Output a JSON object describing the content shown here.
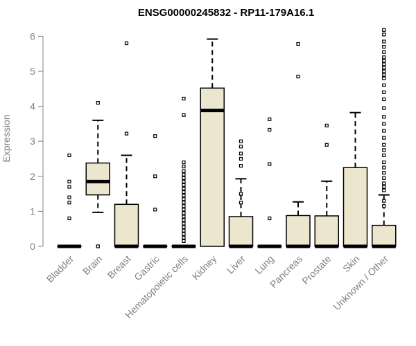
{
  "chart_data": {
    "type": "box",
    "title": "ENSG00000245832 - RP11-179A16.1",
    "xlabel": "",
    "ylabel": "Expression",
    "ylim": [
      0,
      6.2
    ],
    "yticks": [
      0,
      1,
      2,
      3,
      4,
      5,
      6
    ],
    "colors": {
      "box_fill": "#ede6cf",
      "axis": "#808080",
      "text": "#808080"
    },
    "categories": [
      "Bladder",
      "Brain",
      "Breast",
      "Gastric",
      "Hematopoietic cells",
      "Kidney",
      "Liver",
      "Lung",
      "Pancreas",
      "Prostate",
      "Skin",
      "Unknown / Other"
    ],
    "boxes": [
      {
        "q1": 0,
        "median": 0,
        "q3": 0,
        "whisker_low": 0,
        "whisker_high": 0,
        "outliers": [
          2.6,
          1.85,
          1.7,
          1.4,
          1.25,
          0.8
        ]
      },
      {
        "q1": 1.47,
        "median": 1.85,
        "q3": 2.38,
        "whisker_low": 0.97,
        "whisker_high": 3.6,
        "outliers": [
          4.1,
          0
        ]
      },
      {
        "q1": 0,
        "median": 0,
        "q3": 1.2,
        "whisker_low": 0,
        "whisker_high": 2.6,
        "outliers": [
          5.8,
          3.22
        ]
      },
      {
        "q1": 0,
        "median": 0,
        "q3": 0,
        "whisker_low": 0,
        "whisker_high": 0,
        "outliers": [
          3.15,
          2.0,
          1.05
        ]
      },
      {
        "q1": 0,
        "median": 0,
        "q3": 0,
        "whisker_low": 0,
        "whisker_high": 0,
        "outliers": [
          4.22,
          3.75,
          2.4,
          2.28,
          2.15,
          2.05,
          1.95,
          1.85,
          1.75,
          1.65,
          1.55,
          1.45,
          1.35,
          1.25,
          1.15,
          1.05,
          0.95,
          0.85,
          0.75,
          0.65,
          0.55,
          0.45,
          0.35,
          0.25,
          0.15
        ]
      },
      {
        "q1": 0,
        "median": 3.88,
        "q3": 4.52,
        "whisker_low": 0,
        "whisker_high": 5.92,
        "outliers": []
      },
      {
        "q1": 0,
        "median": 0,
        "q3": 0.85,
        "whisker_low": 0,
        "whisker_high": 1.93,
        "outliers": [
          3.0,
          2.85,
          2.65,
          2.5,
          2.3,
          1.5,
          1.25
        ]
      },
      {
        "q1": 0,
        "median": 0,
        "q3": 0,
        "whisker_low": 0,
        "whisker_high": 0,
        "outliers": [
          3.63,
          3.33,
          2.35,
          0.8
        ]
      },
      {
        "q1": 0,
        "median": 0,
        "q3": 0.88,
        "whisker_low": 0,
        "whisker_high": 1.27,
        "outliers": [
          5.78,
          4.85
        ]
      },
      {
        "q1": 0,
        "median": 0,
        "q3": 0.87,
        "whisker_low": 0,
        "whisker_high": 1.86,
        "outliers": [
          3.45,
          2.9
        ]
      },
      {
        "q1": 0,
        "median": 0,
        "q3": 2.25,
        "whisker_low": 0,
        "whisker_high": 3.82,
        "outliers": []
      },
      {
        "q1": 0,
        "median": 0,
        "q3": 0.6,
        "whisker_low": 0,
        "whisker_high": 1.47,
        "outliers": [
          6.18,
          6.05,
          5.85,
          5.7,
          5.55,
          5.4,
          5.3,
          5.2,
          5.1,
          5.0,
          4.9,
          4.8,
          4.6,
          4.4,
          4.2,
          3.95,
          3.7,
          3.5,
          3.3,
          3.1,
          2.9,
          2.75,
          2.6,
          2.4,
          2.25,
          2.1,
          1.95,
          1.8,
          1.7,
          1.6,
          1.3,
          1.15
        ]
      }
    ]
  }
}
